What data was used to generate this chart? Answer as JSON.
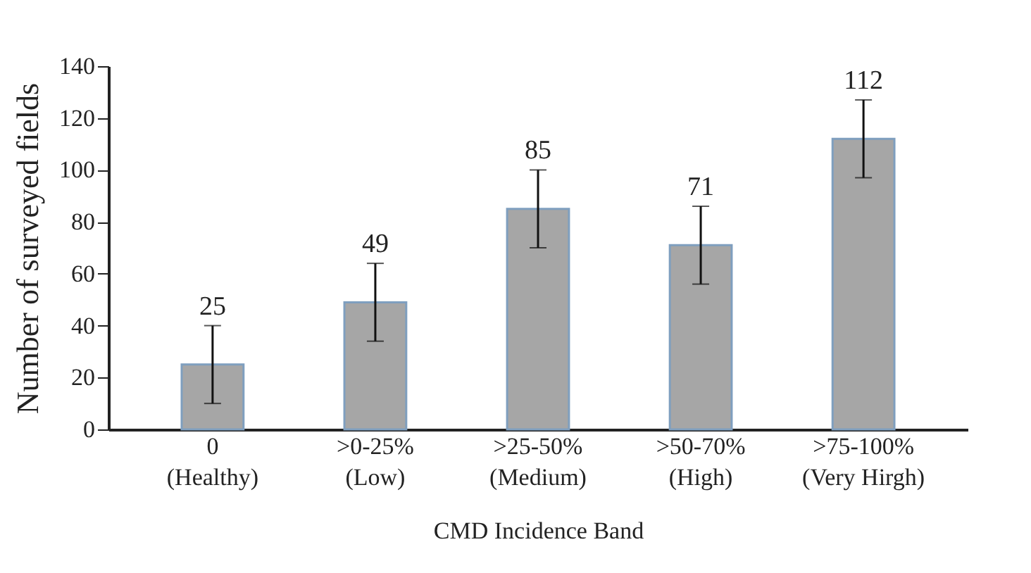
{
  "chart_data": {
    "type": "bar",
    "xlabel": "CMD Incidence Band",
    "ylabel": "Number of surveyed fields",
    "categories": [
      "0 (Healthy)",
      ">0-25% (Low)",
      ">25-50% (Medium)",
      ">50-70% (High)",
      ">75-100% (Very Hirgh)"
    ],
    "values": [
      25,
      49,
      85,
      71,
      112
    ],
    "errors": [
      15,
      15,
      15,
      15,
      15
    ],
    "color": "#a6a6a6",
    "data_labels": true,
    "ylim": [
      0,
      140
    ],
    "yticks": [
      0,
      20,
      40,
      60,
      80,
      100,
      120,
      140
    ],
    "grid": false
  }
}
